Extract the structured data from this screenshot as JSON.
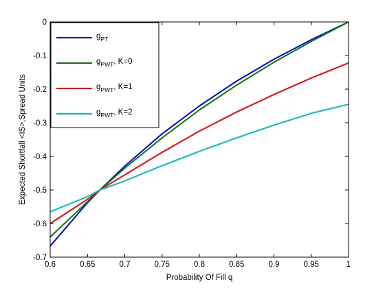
{
  "chart_data": {
    "type": "line",
    "title": "",
    "xlabel": "Probability Of Fill q",
    "ylabel": "Expected Shortfall <IS>,Spread Units",
    "xlim": [
      0.6,
      1.0
    ],
    "ylim": [
      -0.7,
      0
    ],
    "xticks": [
      0.6,
      0.65,
      0.7,
      0.75,
      0.8,
      0.85,
      0.9,
      0.95,
      1.0
    ],
    "xtick_labels": [
      "0.6",
      "0.65",
      "0.7",
      "0.75",
      "0.8",
      "0.85",
      "0.9",
      "0.95",
      "1"
    ],
    "yticks": [
      0,
      -0.1,
      -0.2,
      -0.3,
      -0.4,
      -0.5,
      -0.6,
      -0.7
    ],
    "ytick_labels": [
      "0",
      "-0.1",
      "-0.2",
      "-0.3",
      "-0.4",
      "-0.5",
      "-0.6",
      "-0.7"
    ],
    "grid": false,
    "legend_position": "top-left",
    "series": [
      {
        "legend_main": "g",
        "legend_sub": "PT",
        "legend_suffix": "",
        "color": "#0000ff",
        "x": [
          0.6,
          0.65,
          0.6667,
          0.7,
          0.75,
          0.8,
          0.85,
          0.9,
          0.95,
          1.0
        ],
        "y": [
          -0.667,
          -0.538,
          -0.5,
          -0.429,
          -0.333,
          -0.25,
          -0.176,
          -0.111,
          -0.053,
          0.0
        ]
      },
      {
        "legend_main": "g",
        "legend_sub": "PWT",
        "legend_suffix": ", K=0",
        "color": "#008000",
        "x": [
          0.6,
          0.65,
          0.6667,
          0.7,
          0.75,
          0.8,
          0.85,
          0.9,
          0.95,
          1.0
        ],
        "y": [
          -0.64,
          -0.535,
          -0.5,
          -0.435,
          -0.345,
          -0.262,
          -0.188,
          -0.12,
          -0.058,
          0.0
        ]
      },
      {
        "legend_main": "g",
        "legend_sub": "PWT",
        "legend_suffix": ", K=1",
        "color": "#ff0000",
        "x": [
          0.6,
          0.65,
          0.6667,
          0.7,
          0.75,
          0.8,
          0.85,
          0.9,
          0.95,
          1.0
        ],
        "y": [
          -0.6,
          -0.528,
          -0.5,
          -0.455,
          -0.388,
          -0.325,
          -0.268,
          -0.216,
          -0.167,
          -0.122
        ]
      },
      {
        "legend_main": "g",
        "legend_sub": "PWT",
        "legend_suffix": ", K=2",
        "color": "#00bfbf",
        "x": [
          0.6,
          0.65,
          0.6667,
          0.7,
          0.75,
          0.8,
          0.85,
          0.9,
          0.95,
          1.0
        ],
        "y": [
          -0.565,
          -0.52,
          -0.5,
          -0.473,
          -0.428,
          -0.385,
          -0.345,
          -0.307,
          -0.272,
          -0.245
        ]
      }
    ]
  }
}
